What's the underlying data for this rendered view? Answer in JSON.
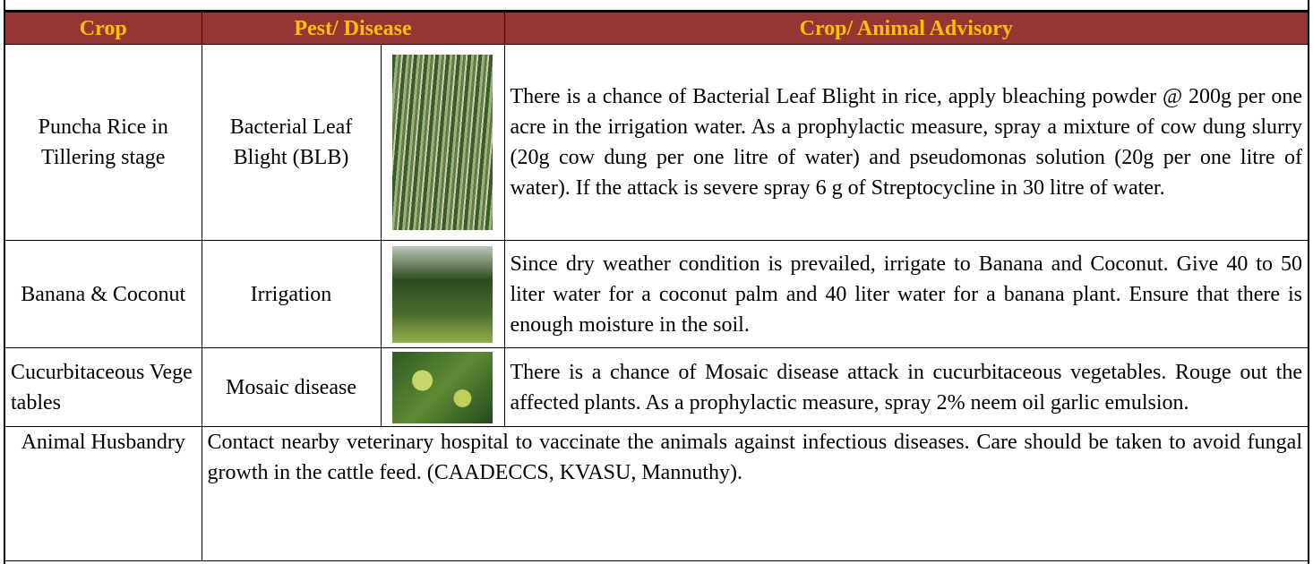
{
  "table": {
    "header": [
      "Crop",
      "Pest/ Disease",
      "Crop/ Animal Advisory"
    ],
    "rows": [
      {
        "crop": "Puncha Rice in Tillering stage",
        "pest": "Bacterial Leaf Blight (BLB)",
        "advisory": "There is a chance of Bacterial Leaf Blight in rice, apply bleaching powder @ 200g per one acre in the irrigation water. As a prophylactic measure, spray a mixture of cow dung slurry (20g cow dung per one litre of water) and pseudomonas solution (20g per one litre of water). If the attack is severe spray 6 g of Streptocycline in 30 litre of water."
      },
      {
        "crop": "Banana & Coconut",
        "pest": "Irrigation",
        "advisory": "Since dry weather condition is prevailed, irrigate to Banana and Coconut. Give 40 to 50 liter water for a coconut palm and 40 liter water for a banana plant. Ensure that there is enough moisture in the soil."
      },
      {
        "crop": "Cucurbitaceous Vegetables",
        "pest": "Mosaic disease",
        "advisory": "There is a chance of Mosaic disease attack in cucurbitaceous vegetables. Rouge out the affected plants. As a prophylactic measure, spray 2% neem oil garlic emulsion."
      },
      {
        "crop": "Animal Husbandry",
        "advisory": "Contact nearby veterinary hospital to vaccinate the animals against infectious diseases. Care should be taken to avoid fungal growth in the cattle feed. (CAADECCS, KVASU, Mannuthy)."
      }
    ]
  }
}
